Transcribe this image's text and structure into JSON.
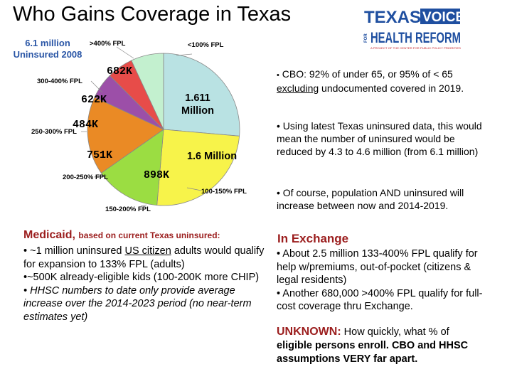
{
  "title": "Who Gains Coverage in Texas",
  "subtitle": "6.1 million Uninsured 2008",
  "logo": {
    "line1": "TEXAS",
    "voice": "VOICE",
    "for": "FOR",
    "line2": "HEALTH REFORM",
    "tagline": "A PROJECT OF THE CENTER FOR PUBLIC POLICY PRIORITIES",
    "colors": {
      "blue": "#1f4fa0",
      "red": "#c52127"
    }
  },
  "chart_data": {
    "type": "pie",
    "title": "6.1 million Uninsured 2008",
    "slices": [
      {
        "category": "<100% FPL",
        "value_label": "1.611 Million",
        "value": 1.611,
        "color": "#b9e2e3"
      },
      {
        "category": "100-150% FPL",
        "value_label": "1.6 Million",
        "value": 1.6,
        "color": "#f7f34a"
      },
      {
        "category": "150-200% FPL",
        "value_label": "898K",
        "value": 0.898,
        "color": "#9bdd42"
      },
      {
        "category": "200-250% FPL",
        "value_label": "751K",
        "value": 0.751,
        "color": "#ea8a25"
      },
      {
        "category": "250-300% FPL",
        "value_label": "484K",
        "value": 0.484,
        "color": "#9c4fa8"
      },
      {
        "category": "300-400% FPL",
        "value_label": "622K",
        "value": 0.622,
        "color": "#e74c49"
      },
      {
        "category": ">400% FPL",
        "value_label": "682K",
        "value": 0.682,
        "color": "#c3f0cf"
      }
    ]
  },
  "cbo": {
    "bullet": "•",
    "pre": "CBO: 92% of under 65, or 95% of < 65 ",
    "underlined": "excluding",
    "post": " undocumented covered in 2019."
  },
  "latest": "• Using latest Texas uninsured data, this would mean the number of uninsured would be reduced by 4.3 to 4.6 million (from 6.1 million)",
  "of_course": "• Of course, population AND uninsured will increase between now and 2014-2019.",
  "medicaid": {
    "heading": "Medicaid,",
    "subheading": "based on current Texas uninsured:",
    "bullet1_pre": "• ~1 million uninsured ",
    "bullet1_link": "US citizen",
    "bullet1_post": " adults would qualify for expansion to 133% FPL (adults)",
    "bullet2": "•~500K already-eligible kids (100-200K more CHIP)",
    "bullet3": "• HHSC numbers to date only provide average increase over the 2014-2023 period (no near-term estimates yet)"
  },
  "exchange": {
    "heading": "In Exchange",
    "bullet1": "• About 2.5 million 133-400% FPL qualify for help w/premiums, out-of-pocket (citizens & legal residents)",
    "bullet2": "• Another 680,000 >400% FPL qualify for full-cost coverage thru Exchange."
  },
  "unknown": {
    "label": "UNKNOWN:",
    "text1": " How quickly, what % of",
    "text2": "eligible persons enroll. CBO and HHSC assumptions VERY far apart."
  }
}
